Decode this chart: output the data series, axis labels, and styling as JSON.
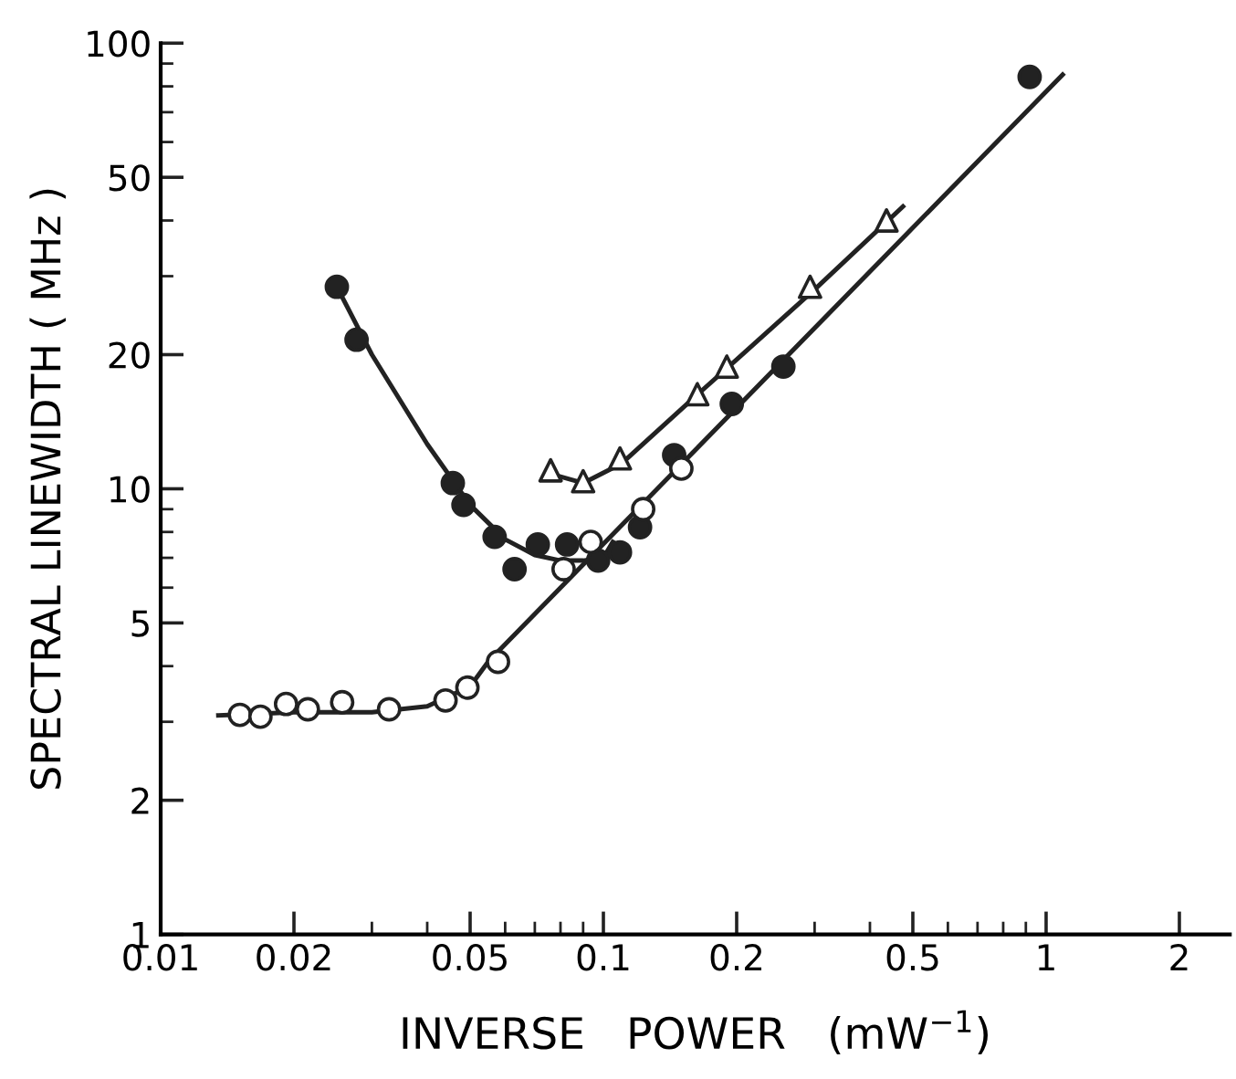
{
  "chart_data": {
    "type": "scatter",
    "xlabel": "INVERSE   POWER   (mW$^{−1}$)",
    "ylabel": "SPECTRAL LINEWIDTH ( MHz )",
    "log": "xy",
    "grid": false,
    "xlim": [
      0.01,
      2.6
    ],
    "ylim": [
      1,
      100
    ],
    "xticks": [
      0.01,
      0.02,
      0.05,
      0.1,
      0.2,
      0.5,
      1,
      2
    ],
    "yticks": [
      1,
      2,
      5,
      10,
      20,
      50,
      100
    ],
    "series": [
      {
        "marker": "circle",
        "color": "#222222",
        "x": [
          0.025,
          0.0277,
          0.0457,
          0.0483,
          0.0568,
          0.063,
          0.0711,
          0.0828,
          0.0973,
          0.109,
          0.121,
          0.1445,
          0.195,
          0.255,
          0.918
        ],
        "values": [
          28.4,
          21.6,
          10.3,
          9.2,
          7.8,
          6.6,
          7.5,
          7.5,
          6.9,
          7.2,
          8.2,
          11.9,
          15.5,
          18.8,
          84
        ]
      },
      {
        "marker": "circle",
        "color": "#ffffff",
        "x": [
          0.0151,
          0.0168,
          0.0192,
          0.0215,
          0.0257,
          0.0328,
          0.044,
          0.0493,
          0.0578,
          0.0813,
          0.0936,
          0.123,
          0.15
        ],
        "values": [
          3.11,
          3.08,
          3.29,
          3.2,
          3.32,
          3.2,
          3.35,
          3.58,
          4.09,
          6.6,
          7.6,
          9.0,
          11.1
        ]
      },
      {
        "marker": "triangle",
        "color": "#ffffff",
        "x": [
          0.076,
          0.09,
          0.109,
          0.163,
          0.19,
          0.293,
          0.436
        ],
        "values": [
          11.0,
          10.4,
          11.7,
          16.3,
          18.8,
          28.4,
          40
        ]
      },
      {
        "type": "line",
        "marker": "none",
        "color": "#222222",
        "x": [
          0.025,
          0.03,
          0.04,
          0.05,
          0.06,
          0.07,
          0.08,
          0.09,
          0.1,
          0.105
        ],
        "values": [
          28.4,
          20,
          12.6,
          9.2,
          7.7,
          7.1,
          6.9,
          6.9,
          7.0,
          7.6
        ]
      },
      {
        "type": "line",
        "marker": "none",
        "color": "#222222",
        "x": [
          0.0135,
          0.02,
          0.03,
          0.04,
          0.05,
          0.055,
          1.09
        ],
        "values": [
          3.1,
          3.15,
          3.15,
          3.25,
          3.6,
          4.1,
          85
        ]
      },
      {
        "type": "line",
        "marker": "none",
        "color": "#222222",
        "x": [
          0.076,
          0.09,
          0.11,
          0.16,
          0.2,
          0.3,
          0.475
        ],
        "values": [
          10.8,
          10.3,
          11.4,
          16,
          19.5,
          28,
          43
        ]
      }
    ]
  }
}
